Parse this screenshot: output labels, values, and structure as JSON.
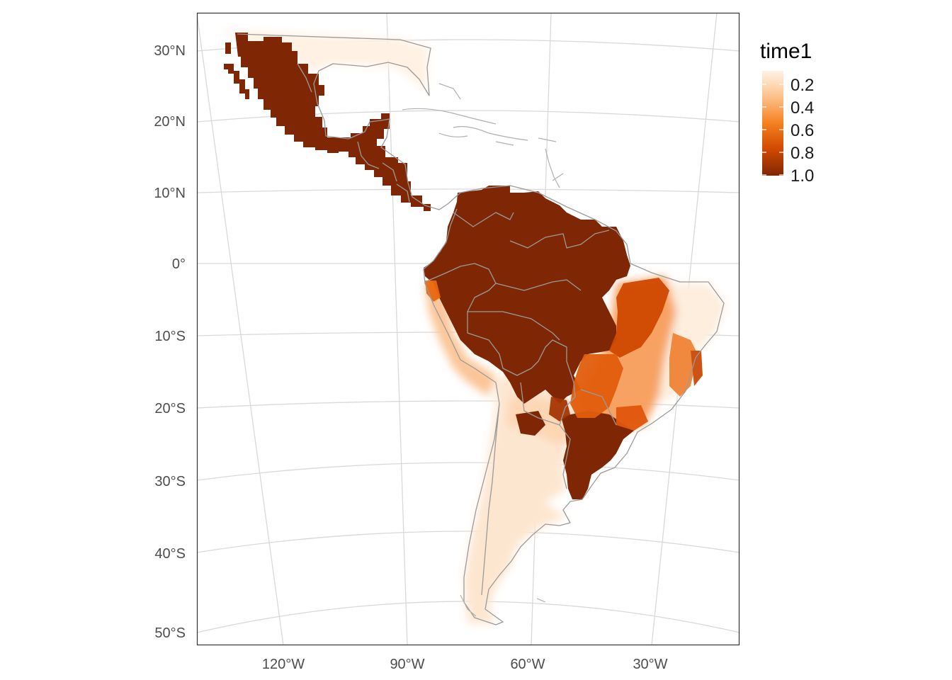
{
  "map": {
    "lat_labels": [
      "30°N",
      "20°N",
      "10°N",
      "0°",
      "10°S",
      "20°S",
      "30°S",
      "40°S",
      "50°S"
    ],
    "lon_labels": [
      "120°W",
      "90°W",
      "60°W",
      "30°W"
    ],
    "legend": {
      "title": "time1",
      "labels": [
        "0.2",
        "0.4",
        "0.6",
        "0.8",
        "1.0"
      ],
      "colors": [
        "#fff3e6",
        "#fdc08a",
        "#f5801f",
        "#d04801",
        "#7f2704"
      ]
    },
    "colors": {
      "background": "#ffffff",
      "graticule": "#d9d9d9",
      "boundary": "#9a9a9a",
      "panel_border": "#333333"
    }
  }
}
